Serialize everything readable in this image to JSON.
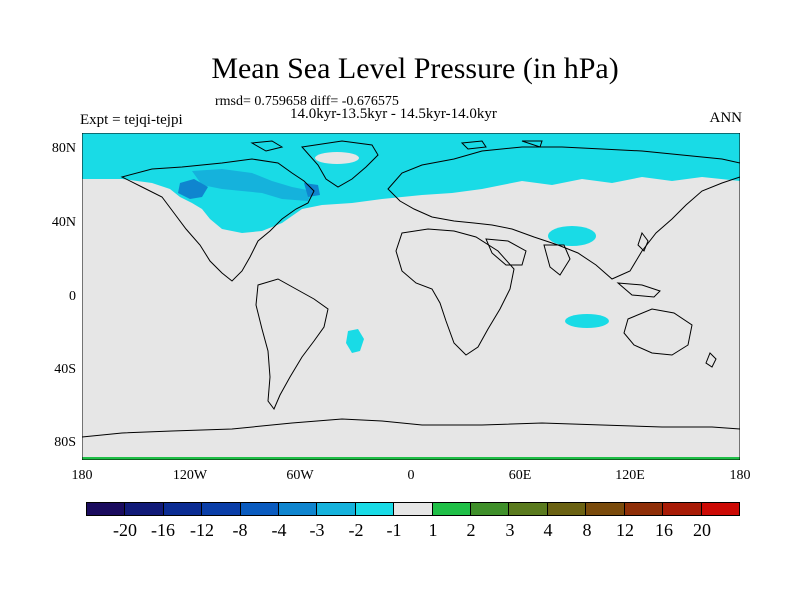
{
  "title": "Mean Sea Level Pressure (in hPa)",
  "stats": "rmsd= 0.759658 diff= -0.676575",
  "period": "14.0kyr-13.5kyr - 14.5kyr-14.0kyr",
  "experiment": "Expt = tejqi-tejpi",
  "season": "ANN",
  "lat_labels": [
    "80N",
    "40N",
    "0",
    "40S",
    "80S"
  ],
  "lon_labels": [
    "180",
    "120W",
    "60W",
    "0",
    "60E",
    "120E",
    "180"
  ],
  "colorbar": {
    "colors": [
      "#1a0b5e",
      "#111a78",
      "#0b2c93",
      "#0a3ea8",
      "#0a5bbf",
      "#0f85cf",
      "#15b2dc",
      "#19dbe6",
      "#e6e6e6",
      "#1fbf47",
      "#3f8f2a",
      "#5a7a1e",
      "#6b6213",
      "#7a4b0c",
      "#8f2f08",
      "#a81b06",
      "#cc0a05"
    ],
    "labels": [
      "-20",
      "-16",
      "-12",
      "-8",
      "-4",
      "-3",
      "-2",
      "-1",
      "1",
      "2",
      "3",
      "4",
      "8",
      "12",
      "16",
      "20"
    ]
  },
  "map_colors": {
    "neutral": "#e6e6e6",
    "light_neg": "#19dbe6",
    "mid_neg": "#15b2dc",
    "dark_neg": "#0f85cf",
    "pos": "#1fbf47"
  }
}
